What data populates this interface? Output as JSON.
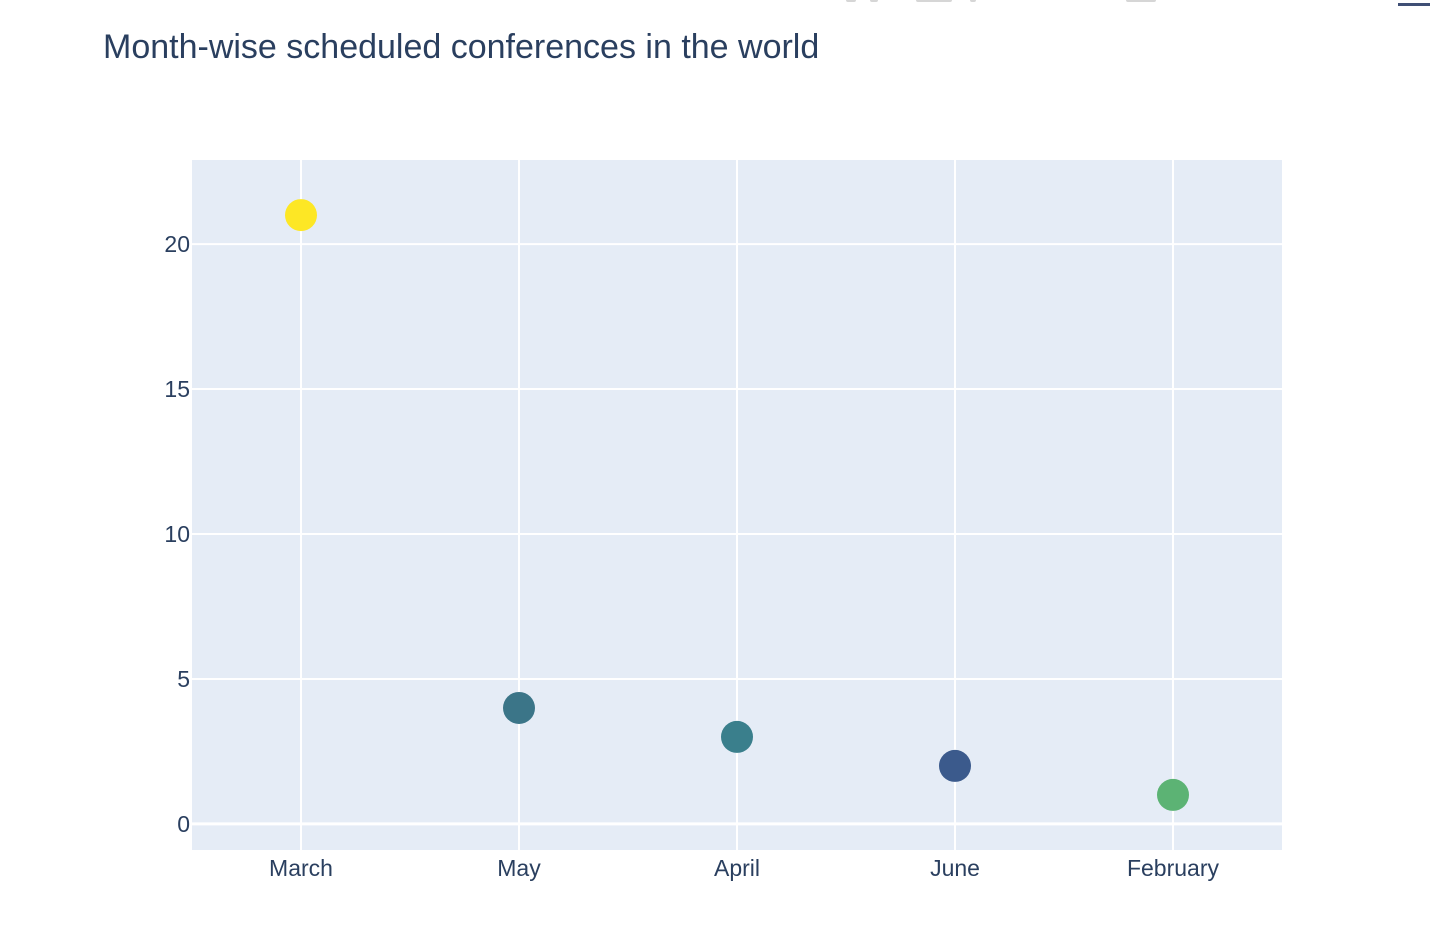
{
  "chart_data": {
    "type": "scatter",
    "title": "Month-wise scheduled conferences in the world",
    "xlabel": "",
    "ylabel": "",
    "categories": [
      "March",
      "May",
      "April",
      "June",
      "February"
    ],
    "values": [
      21,
      4,
      3,
      2,
      1
    ],
    "marker_colors": [
      "#fde725",
      "#3b7588",
      "#3a7f8c",
      "#3b5a8c",
      "#5cb374"
    ],
    "ylim": [
      -0.9,
      22.9
    ],
    "yticks": [
      0,
      5,
      10,
      15,
      20
    ],
    "grid": true,
    "plot_background": "#e5ecf6",
    "grid_color": "#ffffff"
  },
  "toolbar": {
    "modebar_icon": "plotly-modebar-icons",
    "logo_icon": "plotly-logo-icon"
  }
}
